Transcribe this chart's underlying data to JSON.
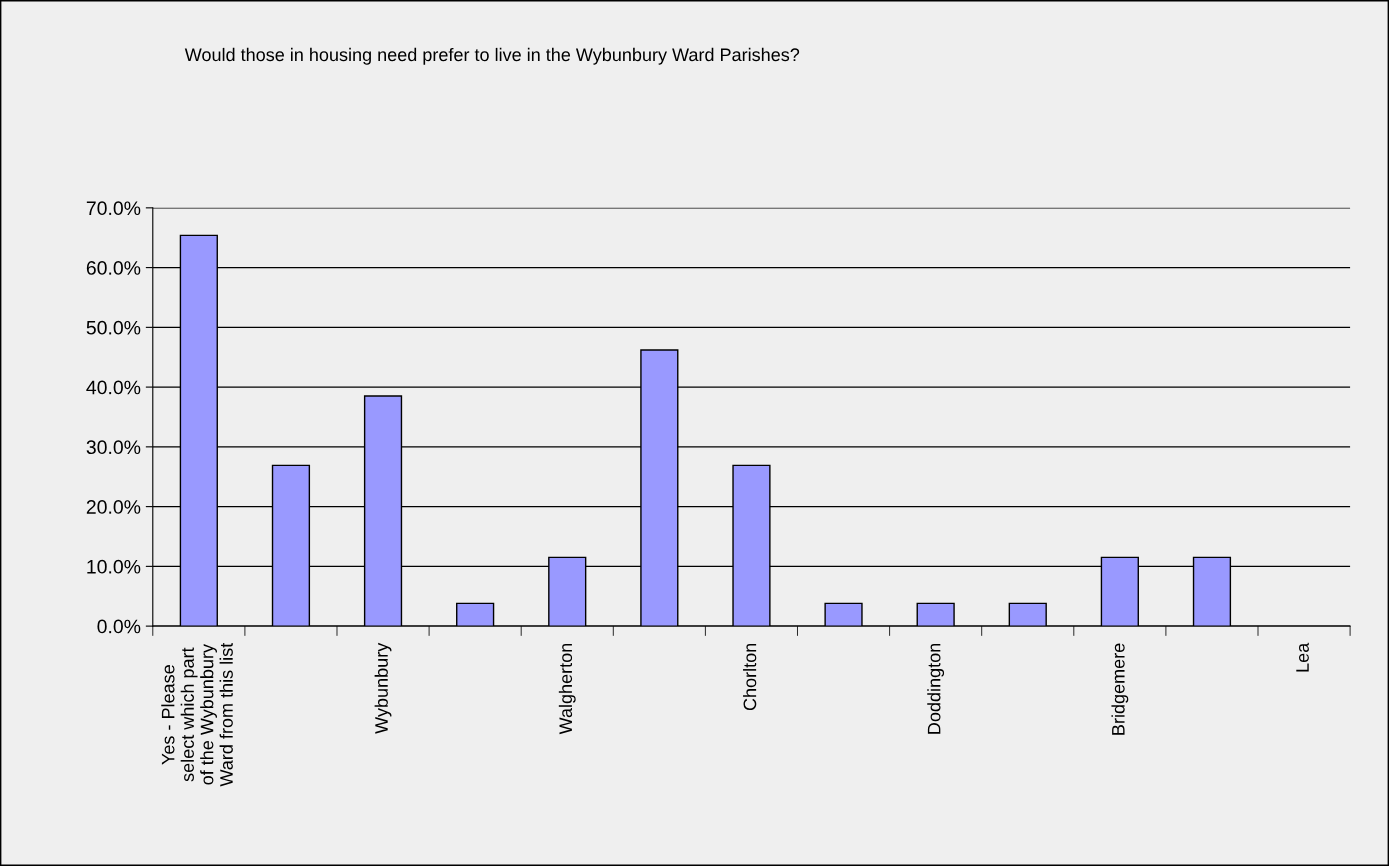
{
  "chart_data": {
    "type": "bar",
    "title": "Would those in housing need prefer to live in the Wybunbury Ward Parishes?",
    "categories": [
      "Yes - Please\nselect which part\nof the Wybunbury\nWard from this list",
      null,
      "Wybunbury",
      null,
      "Walgherton",
      null,
      "Chorlton",
      null,
      "Doddington",
      null,
      "Bridgemere",
      null,
      "Lea"
    ],
    "values": [
      65.4,
      26.9,
      38.5,
      3.8,
      11.5,
      46.2,
      26.9,
      3.8,
      3.8,
      3.8,
      11.5,
      11.5,
      0
    ],
    "color": "#9999ff",
    "ylim": [
      0,
      70
    ],
    "yticks": [
      {
        "value": 0,
        "label": "0.0%"
      },
      {
        "value": 10,
        "label": "10.0%"
      },
      {
        "value": 20,
        "label": "20.0%"
      },
      {
        "value": 30,
        "label": "30.0%"
      },
      {
        "value": 40,
        "label": "40.0%"
      },
      {
        "value": 50,
        "label": "50.0%"
      },
      {
        "value": 60,
        "label": "60.0%"
      },
      {
        "value": 70,
        "label": "70.0%"
      }
    ],
    "grid": "y",
    "legend": false
  }
}
